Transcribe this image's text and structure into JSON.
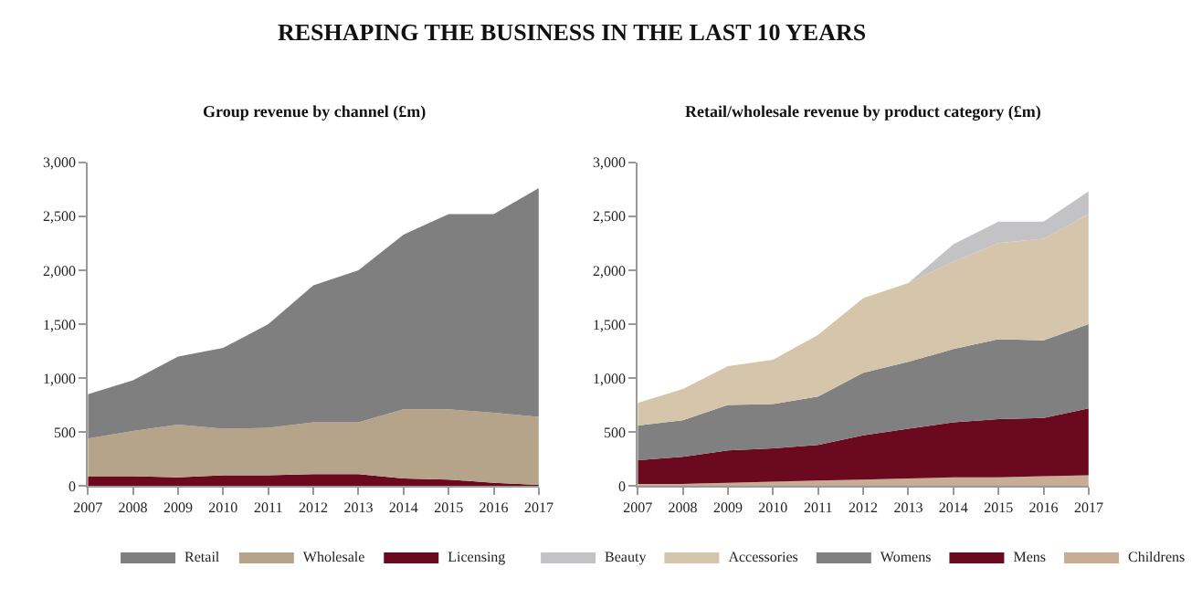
{
  "chart_data": [
    {
      "type": "area",
      "stacked": true,
      "title": "Group revenue by channel (£m)",
      "annotations": [
        "RESHAPING THE BUSINESS IN THE LAST 10 YEARS"
      ],
      "x": [
        2007,
        2008,
        2009,
        2010,
        2011,
        2012,
        2013,
        2014,
        2015,
        2016,
        2017
      ],
      "series": [
        {
          "name": "Licensing",
          "color": "#6b0a1f",
          "values": [
            90,
            90,
            80,
            100,
            100,
            110,
            110,
            70,
            60,
            30,
            10
          ]
        },
        {
          "name": "Wholesale",
          "color": "#b5a48a",
          "values": [
            350,
            420,
            490,
            430,
            440,
            480,
            480,
            640,
            650,
            650,
            630
          ]
        },
        {
          "name": "Retail",
          "color": "#7f7f7f",
          "values": [
            410,
            470,
            630,
            750,
            960,
            1270,
            1410,
            1620,
            1810,
            1840,
            2120
          ]
        }
      ],
      "xlim": [
        2007,
        2017
      ],
      "xticks": [
        2007,
        2008,
        2009,
        2010,
        2011,
        2012,
        2013,
        2014,
        2015,
        2016,
        2017
      ],
      "ylim": [
        0,
        3000
      ],
      "yticks": [
        {
          "value": 0,
          "label": "0"
        },
        {
          "value": 500,
          "label": "500"
        },
        {
          "value": 1000,
          "label": "1,000"
        },
        {
          "value": 1500,
          "label": "1,500"
        },
        {
          "value": 2000,
          "label": "2,000"
        },
        {
          "value": 2500,
          "label": "2,500"
        },
        {
          "value": 3000,
          "label": "3,000"
        }
      ],
      "legend": "bottom",
      "marker": "none"
    },
    {
      "type": "area",
      "stacked": true,
      "title": "Retail/wholesale revenue by product category (£m)",
      "x": [
        2007,
        2008,
        2009,
        2010,
        2011,
        2012,
        2013,
        2014,
        2015,
        2016,
        2017
      ],
      "series": [
        {
          "name": "Childrens",
          "color": "#c6ad93",
          "values": [
            20,
            20,
            30,
            40,
            50,
            60,
            70,
            80,
            80,
            90,
            100
          ]
        },
        {
          "name": "Mens",
          "color": "#6b0a1f",
          "values": [
            220,
            250,
            300,
            310,
            330,
            410,
            460,
            510,
            540,
            540,
            620
          ]
        },
        {
          "name": "Womens",
          "color": "#808080",
          "values": [
            320,
            340,
            420,
            410,
            450,
            580,
            620,
            680,
            740,
            720,
            780
          ]
        },
        {
          "name": "Accessories",
          "color": "#d4c5ab",
          "values": [
            210,
            290,
            360,
            410,
            570,
            690,
            730,
            810,
            890,
            940,
            1020
          ]
        },
        {
          "name": "Beauty",
          "color": "#c3c3c6",
          "values": [
            0,
            0,
            0,
            0,
            0,
            0,
            0,
            160,
            200,
            160,
            210
          ]
        }
      ],
      "xlim": [
        2007,
        2017
      ],
      "xticks": [
        2007,
        2008,
        2009,
        2010,
        2011,
        2012,
        2013,
        2014,
        2015,
        2016,
        2017
      ],
      "ylim": [
        0,
        3000
      ],
      "yticks": [
        {
          "value": 0,
          "label": "0"
        },
        {
          "value": 500,
          "label": "500"
        },
        {
          "value": 1000,
          "label": "1,000"
        },
        {
          "value": 1500,
          "label": "1,500"
        },
        {
          "value": 2000,
          "label": "2,000"
        },
        {
          "value": 2500,
          "label": "2,500"
        },
        {
          "value": 3000,
          "label": "3,000"
        }
      ],
      "legend": "bottom",
      "marker": "none"
    }
  ]
}
